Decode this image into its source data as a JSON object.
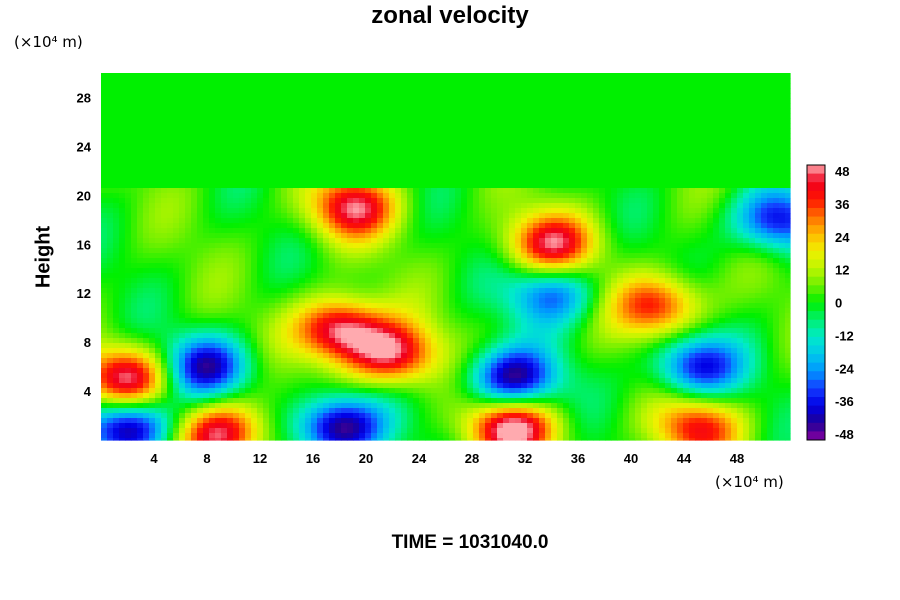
{
  "chart_data": {
    "type": "heatmap",
    "title": "zonal velocity",
    "xlabel": "",
    "ylabel": "Height",
    "x_unit": "(×10⁴ m)",
    "y_unit": "(×10⁴ m)",
    "xlim": [
      0,
      52
    ],
    "ylim": [
      0,
      30
    ],
    "xticks": [
      "4",
      "8",
      "12",
      "16",
      "20",
      "24",
      "28",
      "32",
      "36",
      "40",
      "44",
      "48"
    ],
    "yticks": [
      "4",
      "8",
      "12",
      "16",
      "20",
      "24",
      "28"
    ],
    "colorbar": {
      "range": [
        -48,
        48
      ],
      "ticks": [
        "48",
        "36",
        "24",
        "12",
        "0",
        "-12",
        "-24",
        "-36",
        "-48"
      ]
    },
    "field_summary": {
      "upper_region_value": 0,
      "upper_region_y_range": [
        20.5,
        30
      ],
      "features": [
        {
          "x": 18,
          "y": 9,
          "value": 48
        },
        {
          "x": 22,
          "y": 7,
          "value": 42
        },
        {
          "x": 19,
          "y": 19,
          "value": 40
        },
        {
          "x": 34,
          "y": 16,
          "value": 40
        },
        {
          "x": 2,
          "y": 5,
          "value": 44
        },
        {
          "x": 9,
          "y": 0.5,
          "value": 46
        },
        {
          "x": 31,
          "y": 1,
          "value": 48
        },
        {
          "x": 45,
          "y": 1,
          "value": 34
        },
        {
          "x": 42,
          "y": 11,
          "value": 36
        },
        {
          "x": 8,
          "y": 6,
          "value": -40
        },
        {
          "x": 31,
          "y": 5,
          "value": -46
        },
        {
          "x": 45,
          "y": 6,
          "value": -38
        },
        {
          "x": 18,
          "y": 1,
          "value": -50
        },
        {
          "x": 2,
          "y": 1,
          "value": -50
        },
        {
          "x": 51,
          "y": 18,
          "value": -38
        },
        {
          "x": 34,
          "y": 12,
          "value": -30
        }
      ]
    }
  },
  "footer": {
    "time_label": "TIME = 1031040.0"
  }
}
